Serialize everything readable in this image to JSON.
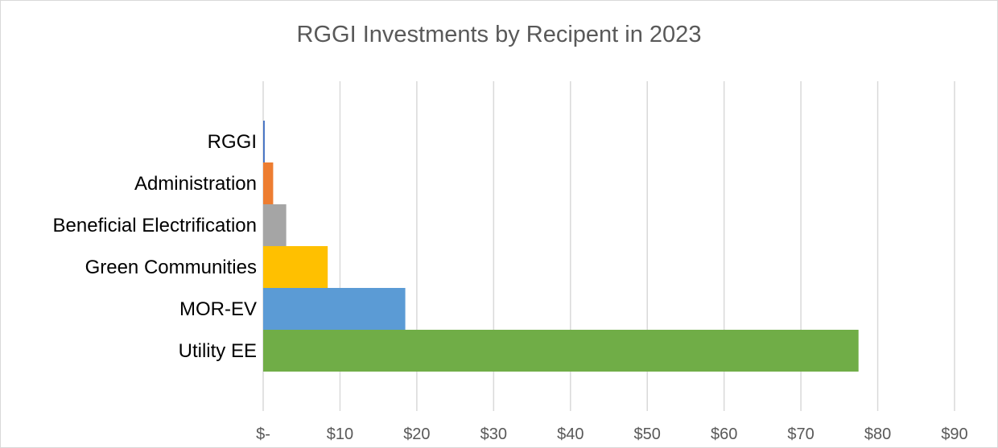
{
  "chart_data": {
    "type": "bar",
    "orientation": "horizontal",
    "title": "RGGI Investments by Recipent in 2023",
    "xlabel": "",
    "ylabel": "",
    "categories": [
      "RGGI",
      "Administration",
      "Beneficial Electrification",
      "Green Communities",
      "MOR-EV",
      "Utility EE"
    ],
    "values": [
      0.2,
      1.3,
      3.0,
      8.4,
      18.5,
      77.5
    ],
    "colors": [
      "#4472c4",
      "#ed7d31",
      "#a5a5a5",
      "#ffc000",
      "#5b9bd5",
      "#70ad47"
    ],
    "xlim": [
      0,
      90
    ],
    "ticks": [
      0,
      10,
      20,
      30,
      40,
      50,
      60,
      70,
      80,
      90
    ],
    "tick_labels": [
      "$-",
      "$10",
      "$20",
      "$30",
      "$40",
      "$50",
      "$60",
      "$70",
      "$80",
      "$90"
    ],
    "grid": "vertical",
    "legend": "none"
  }
}
